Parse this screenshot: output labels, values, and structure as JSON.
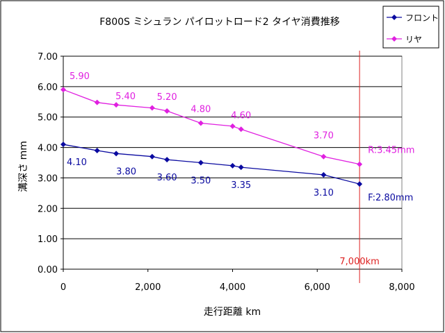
{
  "chart_data": {
    "type": "line",
    "title": "F800S ミシュラン パイロットロード2 タイヤ消費推移",
    "xlabel": "走行距離 km",
    "ylabel": "溝深さ mm",
    "xlim": [
      0,
      8000
    ],
    "ylim": [
      0,
      7
    ],
    "x_ticks": [
      "0",
      "2,000",
      "4,000",
      "6,000",
      "8,000"
    ],
    "y_ticks": [
      "0.00",
      "1.00",
      "2.00",
      "3.00",
      "4.00",
      "5.00",
      "6.00",
      "7.00"
    ],
    "grid": "horizontal",
    "legend_position": "top-right",
    "series": [
      {
        "name": "フロント",
        "color": "#0a0aa0",
        "points": [
          {
            "x": 0,
            "y": 4.1,
            "label": "4.10"
          },
          {
            "x": 800,
            "y": 3.9
          },
          {
            "x": 1250,
            "y": 3.8,
            "label": "3.80"
          },
          {
            "x": 2100,
            "y": 3.7
          },
          {
            "x": 2450,
            "y": 3.6,
            "label": "3.60"
          },
          {
            "x": 3250,
            "y": 3.5,
            "label": "3.50"
          },
          {
            "x": 4000,
            "y": 3.4
          },
          {
            "x": 4200,
            "y": 3.35,
            "label": "3.35"
          },
          {
            "x": 6150,
            "y": 3.1,
            "label": "3.10"
          },
          {
            "x": 7000,
            "y": 2.8,
            "label": "F:2.80mm"
          }
        ]
      },
      {
        "name": "リヤ",
        "color": "#e020e0",
        "points": [
          {
            "x": 0,
            "y": 5.9,
            "label": "5.90"
          },
          {
            "x": 800,
            "y": 5.48
          },
          {
            "x": 1250,
            "y": 5.4,
            "label": "5.40"
          },
          {
            "x": 2100,
            "y": 5.3
          },
          {
            "x": 2450,
            "y": 5.2,
            "label": "5.20"
          },
          {
            "x": 3250,
            "y": 4.8,
            "label": "4.80"
          },
          {
            "x": 4000,
            "y": 4.7
          },
          {
            "x": 4200,
            "y": 4.6,
            "label": "4.60"
          },
          {
            "x": 6150,
            "y": 3.7,
            "label": "3.70"
          },
          {
            "x": 7000,
            "y": 3.45,
            "label": "R:3.45mm"
          }
        ]
      }
    ],
    "reference_line": {
      "x": 7000,
      "label": "7,000km",
      "color": "#dd2222"
    }
  }
}
